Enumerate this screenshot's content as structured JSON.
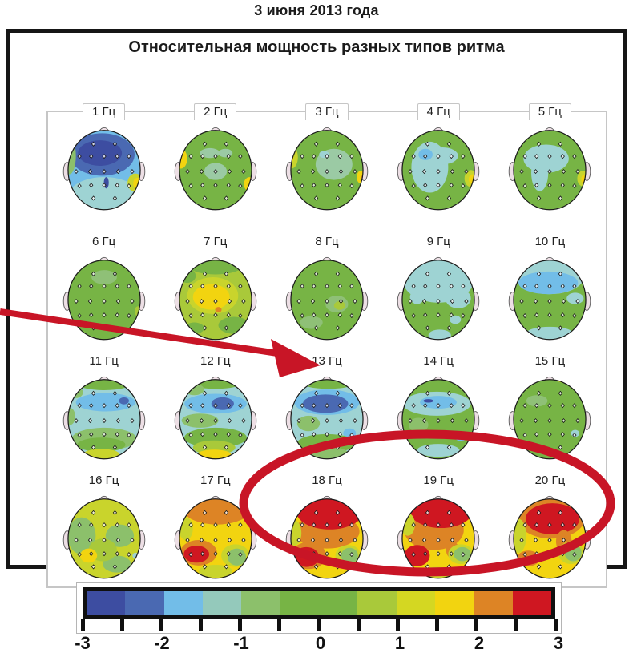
{
  "caption": "3 июня 2013 года",
  "figure": {
    "title": "Относительная мощность разных типов ритма"
  },
  "chart_data": {
    "type": "heatmap",
    "subtype": "eeg-topographic-map-grid",
    "title": "Относительная мощность разных типов ритма",
    "caption": "3 июня 2013 года",
    "grid": {
      "rows": 4,
      "cols": 5
    },
    "unit_label": "Гц",
    "value_scale": {
      "min": -3,
      "max": 3,
      "tick_step": 0.5,
      "labeled_ticks": [
        -3,
        -2,
        -1,
        0,
        1,
        2,
        3
      ]
    },
    "colorbar": {
      "segments": [
        {
          "from": -3.0,
          "to": -2.5,
          "color": "#3d4da1"
        },
        {
          "from": -2.5,
          "to": -2.0,
          "color": "#4a69b2"
        },
        {
          "from": -2.0,
          "to": -1.5,
          "color": "#72bde8"
        },
        {
          "from": -1.5,
          "to": -1.0,
          "color": "#94c9bb"
        },
        {
          "from": -1.0,
          "to": -0.5,
          "color": "#8cc06b"
        },
        {
          "from": -0.5,
          "to": 0.5,
          "color": "#77b445"
        },
        {
          "from": 0.5,
          "to": 1.0,
          "color": "#a9c93a"
        },
        {
          "from": 1.0,
          "to": 1.5,
          "color": "#d4d722"
        },
        {
          "from": 1.5,
          "to": 2.0,
          "color": "#f2d410"
        },
        {
          "from": 2.0,
          "to": 2.5,
          "color": "#dd8425"
        },
        {
          "from": 2.5,
          "to": 3.0,
          "color": "#cf1721"
        }
      ],
      "tick_labels": [
        "-3",
        "-2",
        "-1",
        "0",
        "1",
        "2",
        "3"
      ]
    },
    "annotations": [
      {
        "type": "arrow",
        "color": "#c81526",
        "points_to": "13 Гц",
        "description": "red arrow from left edge pointing to dark-blue frontal region of the 13 Hz map"
      },
      {
        "type": "ellipse",
        "color": "#c81526",
        "encircles": [
          "18 Гц",
          "19 Гц",
          "20 Гц"
        ],
        "description": "red ellipse circling the 18-20 Hz maps"
      }
    ],
    "panels": [
      {
        "label": "1 Гц",
        "freq_hz": 1,
        "base": "#72bde8",
        "blobs": [
          [
            "#9ed3d3",
            60,
            104,
            50,
            26
          ],
          [
            "#4a69b2",
            57,
            46,
            46,
            30
          ],
          [
            "#3d4da1",
            54,
            44,
            31,
            18
          ],
          [
            "#3d4da1",
            63,
            86,
            3.5,
            8
          ],
          [
            "#8cc06b",
            11,
            48,
            9,
            26
          ],
          [
            "#c9d42c",
            104,
            86,
            11,
            13
          ],
          [
            "#f2d410",
            107,
            87,
            6,
            8
          ]
        ]
      },
      {
        "label": "2 Гц",
        "freq_hz": 2,
        "base": "#77b445",
        "blobs": [
          [
            "#9bcaa4",
            52,
            44,
            14,
            7
          ],
          [
            "#9bcaa4",
            74,
            44,
            10,
            6
          ],
          [
            "#9bcaa4",
            60,
            70,
            16,
            12
          ],
          [
            "#f2d410",
            11,
            52,
            9,
            14
          ],
          [
            "#dd8425",
            8,
            50,
            3.5,
            6
          ],
          [
            "#f2d410",
            108,
            88,
            8,
            10
          ],
          [
            "#dd8425",
            111,
            90,
            3.5,
            5
          ]
        ]
      },
      {
        "label": "3 Гц",
        "freq_hz": 3,
        "base": "#77b445",
        "blobs": [
          [
            "#9bcaa4",
            70,
            60,
            26,
            22
          ],
          [
            "#9ed3d3",
            56,
            46,
            7,
            5
          ],
          [
            "#c9d42c",
            10,
            50,
            9,
            16
          ],
          [
            "#f2d410",
            8,
            49,
            5,
            10
          ],
          [
            "#f2d410",
            108,
            78,
            6,
            9
          ],
          [
            "#dd8425",
            111,
            79,
            2.5,
            4
          ]
        ]
      },
      {
        "label": "4 Гц",
        "freq_hz": 4,
        "base": "#77b445",
        "blobs": [
          [
            "#9ed3d3",
            48,
            64,
            26,
            36
          ],
          [
            "#9ed3d3",
            66,
            48,
            22,
            12
          ],
          [
            "#72bde8",
            42,
            46,
            10,
            8
          ],
          [
            "#c9d42c",
            106,
            80,
            9,
            12
          ],
          [
            "#f2d410",
            108,
            81,
            5,
            7
          ]
        ]
      },
      {
        "label": "5 Гц",
        "freq_hz": 5,
        "base": "#77b445",
        "blobs": [
          [
            "#9ed3d3",
            55,
            52,
            32,
            20
          ],
          [
            "#9ed3d3",
            46,
            72,
            12,
            26
          ],
          [
            "#c9d42c",
            107,
            80,
            8,
            11
          ],
          [
            "#f2d410",
            109,
            81,
            4.5,
            6.5
          ]
        ]
      },
      {
        "label": "6 Гц",
        "freq_hz": 6,
        "base": "#77b445",
        "blobs": [
          [
            "#8fc077",
            60,
            36,
            18,
            10
          ],
          [
            "#a9c93a",
            108,
            84,
            5,
            7
          ]
        ]
      },
      {
        "label": "7 Гц",
        "freq_hz": 7,
        "base": "#a9c93a",
        "blobs": [
          [
            "#77b445",
            60,
            20,
            38,
            12
          ],
          [
            "#77b445",
            20,
            34,
            12,
            10
          ],
          [
            "#77b445",
            86,
            104,
            22,
            12
          ],
          [
            "#77b445",
            30,
            108,
            14,
            8
          ],
          [
            "#c9d42c",
            56,
            62,
            36,
            26
          ],
          [
            "#f2d410",
            54,
            64,
            26,
            18
          ],
          [
            "#dd8425",
            64,
            82,
            4.5,
            4
          ]
        ]
      },
      {
        "label": "8 Гц",
        "freq_hz": 8,
        "base": "#77b445",
        "blobs": [
          [
            "#8fc077",
            74,
            74,
            16,
            12
          ],
          [
            "#8fc077",
            38,
            100,
            16,
            9
          ],
          [
            "#a9c93a",
            78,
            76,
            8,
            6
          ]
        ]
      },
      {
        "label": "9 Гц",
        "freq_hz": 9,
        "base": "#77b445",
        "blobs": [
          [
            "#9ed3d3",
            60,
            40,
            50,
            32
          ],
          [
            "#9ed3d3",
            88,
            66,
            18,
            14
          ],
          [
            "#9ed3d3",
            30,
            64,
            10,
            10
          ],
          [
            "#9ed3d3",
            62,
            118,
            16,
            8
          ],
          [
            "#9ed3d3",
            84,
            96,
            8,
            6
          ]
        ]
      },
      {
        "label": "10 Гц",
        "freq_hz": 10,
        "base": "#77b445",
        "blobs": [
          [
            "#9ed3d3",
            60,
            36,
            48,
            24
          ],
          [
            "#72bde8",
            58,
            44,
            42,
            16
          ],
          [
            "#9ed3d3",
            96,
            66,
            12,
            8
          ],
          [
            "#9ed3d3",
            60,
            116,
            34,
            10
          ]
        ]
      },
      {
        "label": "11 Гц",
        "freq_hz": 11,
        "base": "#9ed3d3",
        "blobs": [
          [
            "#77b445",
            60,
            16,
            40,
            11
          ],
          [
            "#8cc06b",
            20,
            30,
            10,
            8
          ],
          [
            "#72bde8",
            62,
            44,
            42,
            13
          ],
          [
            "#4a69b2",
            88,
            42,
            7,
            5
          ],
          [
            "#8cc06b",
            12,
            64,
            7,
            12
          ],
          [
            "#8cc06b",
            60,
            96,
            46,
            16
          ],
          [
            "#77b445",
            56,
            104,
            34,
            10
          ],
          [
            "#c9d42c",
            56,
            118,
            26,
            8
          ]
        ]
      },
      {
        "label": "12 Гц",
        "freq_hz": 12,
        "base": "#9ed3d3",
        "blobs": [
          [
            "#77b445",
            60,
            15,
            40,
            10
          ],
          [
            "#8cc06b",
            30,
            26,
            14,
            8
          ],
          [
            "#72bde8",
            60,
            46,
            44,
            14
          ],
          [
            "#4a69b2",
            70,
            46,
            16,
            9
          ],
          [
            "#8cc06b",
            38,
            70,
            26,
            10
          ],
          [
            "#77b445",
            60,
            94,
            44,
            14
          ],
          [
            "#a9c93a",
            58,
            108,
            30,
            10
          ],
          [
            "#f2d410",
            58,
            118,
            24,
            7
          ]
        ]
      },
      {
        "label": "13 Гц",
        "freq_hz": 13,
        "base": "#9ed3d3",
        "blobs": [
          [
            "#77b445",
            62,
            15,
            40,
            10
          ],
          [
            "#72bde8",
            60,
            44,
            46,
            18
          ],
          [
            "#4a69b2",
            58,
            46,
            32,
            13
          ],
          [
            "#8cc06b",
            34,
            74,
            16,
            11
          ],
          [
            "#72bde8",
            92,
            88,
            9,
            7
          ],
          [
            "#77b445",
            60,
            102,
            42,
            13
          ],
          [
            "#8cc06b",
            60,
            116,
            30,
            9
          ]
        ]
      },
      {
        "label": "14 Гц",
        "freq_hz": 14,
        "base": "#77b445",
        "blobs": [
          [
            "#9ed3d3",
            58,
            46,
            48,
            17
          ],
          [
            "#72bde8",
            60,
            44,
            26,
            9
          ],
          [
            "#3d4da1",
            46,
            42,
            7,
            2.5
          ],
          [
            "#8cc06b",
            32,
            76,
            14,
            10
          ],
          [
            "#72bde8",
            92,
            92,
            9,
            7
          ],
          [
            "#9ed3d3",
            60,
            112,
            30,
            9
          ]
        ]
      },
      {
        "label": "15 Гц",
        "freq_hz": 15,
        "base": "#77b445",
        "blobs": [
          [
            "#8fc077",
            42,
            42,
            15,
            8
          ],
          [
            "#9ed3d3",
            96,
            88,
            6,
            5
          ],
          [
            "#c9d42c",
            76,
            13,
            5,
            3
          ]
        ]
      },
      {
        "label": "16 Гц",
        "freq_hz": 16,
        "base": "#c9d42c",
        "blobs": [
          [
            "#8cc06b",
            28,
            64,
            20,
            26
          ],
          [
            "#8cc06b",
            82,
            64,
            20,
            16
          ],
          [
            "#8cc06b",
            78,
            104,
            20,
            12
          ],
          [
            "#a9c93a",
            58,
            84,
            20,
            16
          ],
          [
            "#f2d410",
            38,
            92,
            12,
            10
          ],
          [
            "#9ed3d3",
            104,
            92,
            4,
            4
          ]
        ]
      },
      {
        "label": "17 Гц",
        "freq_hz": 17,
        "base": "#f2d410",
        "blobs": [
          [
            "#dd8425",
            62,
            28,
            46,
            20
          ],
          [
            "#c9d42c",
            18,
            54,
            10,
            16
          ],
          [
            "#c9d42c",
            88,
            92,
            20,
            16
          ],
          [
            "#8cc06b",
            90,
            94,
            13,
            12
          ],
          [
            "#dd8425",
            36,
            88,
            26,
            18
          ],
          [
            "#cf1721",
            33,
            90,
            18,
            12
          ],
          [
            "#c9d42c",
            60,
            114,
            24,
            9
          ]
        ]
      },
      {
        "label": "18 Гц",
        "freq_hz": 18,
        "base": "#f2d410",
        "blobs": [
          [
            "#dd8425",
            60,
            58,
            46,
            24
          ],
          [
            "#cf1721",
            64,
            30,
            47,
            25
          ],
          [
            "#c9d42c",
            14,
            60,
            10,
            18
          ],
          [
            "#dd8425",
            34,
            92,
            25,
            19
          ],
          [
            "#cf1721",
            31,
            94,
            18,
            14
          ],
          [
            "#c9d42c",
            90,
            92,
            18,
            15
          ],
          [
            "#8cc06b",
            92,
            92,
            12,
            11
          ]
        ]
      },
      {
        "label": "19 Гц",
        "freq_hz": 19,
        "base": "#f2d410",
        "blobs": [
          [
            "#dd8425",
            54,
            56,
            42,
            28
          ],
          [
            "#cf1721",
            64,
            28,
            45,
            25
          ],
          [
            "#c9d42c",
            17,
            48,
            10,
            16
          ],
          [
            "#cf1721",
            30,
            92,
            18,
            15
          ],
          [
            "#dd8425",
            80,
            84,
            9,
            12
          ],
          [
            "#c9d42c",
            92,
            90,
            18,
            14
          ],
          [
            "#8cc06b",
            94,
            90,
            12,
            10
          ],
          [
            "#c9d42c",
            58,
            116,
            24,
            8
          ]
        ]
      },
      {
        "label": "20 Гц",
        "freq_hz": 20,
        "base": "#f2d410",
        "blobs": [
          [
            "#dd8425",
            62,
            38,
            48,
            30
          ],
          [
            "#cf1721",
            64,
            40,
            38,
            22
          ],
          [
            "#dd8425",
            80,
            72,
            11,
            16
          ],
          [
            "#c9d42c",
            16,
            64,
            11,
            24
          ],
          [
            "#dd8425",
            30,
            96,
            16,
            11
          ],
          [
            "#c9d42c",
            90,
            88,
            18,
            16
          ],
          [
            "#8cc06b",
            93,
            88,
            12,
            12
          ]
        ]
      }
    ]
  }
}
